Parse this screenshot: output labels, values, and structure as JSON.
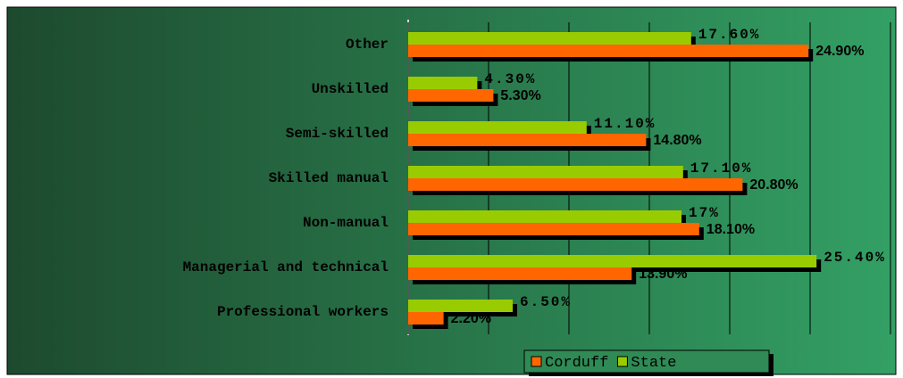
{
  "chart_data": {
    "type": "hbar",
    "categories": [
      "Other",
      "Unskilled",
      "Semi-skilled",
      "Skilled manual",
      "Non-manual",
      "Managerial and technical",
      "Professional workers"
    ],
    "series": [
      {
        "name": "Corduff",
        "color": "#ff6600",
        "values": [
          24.9,
          5.3,
          14.8,
          20.8,
          18.1,
          13.9,
          2.2
        ],
        "value_labels": [
          "24.90%",
          "5.30%",
          "14.80%",
          "20.80%",
          "18.10%",
          "13.90%",
          "2.20%"
        ]
      },
      {
        "name": "State",
        "color": "#99cc00",
        "values": [
          17.6,
          4.3,
          11.1,
          17.1,
          17,
          25.4,
          6.5
        ],
        "value_labels": [
          "17.60%",
          "4.30%",
          "11.10%",
          "17.10%",
          "17%",
          "25.40%",
          "6.50%"
        ]
      }
    ],
    "xlim": [
      0,
      30
    ],
    "xticks": [
      0,
      5,
      10,
      15,
      20,
      25,
      30
    ],
    "grid": true,
    "legend": "bottom"
  }
}
